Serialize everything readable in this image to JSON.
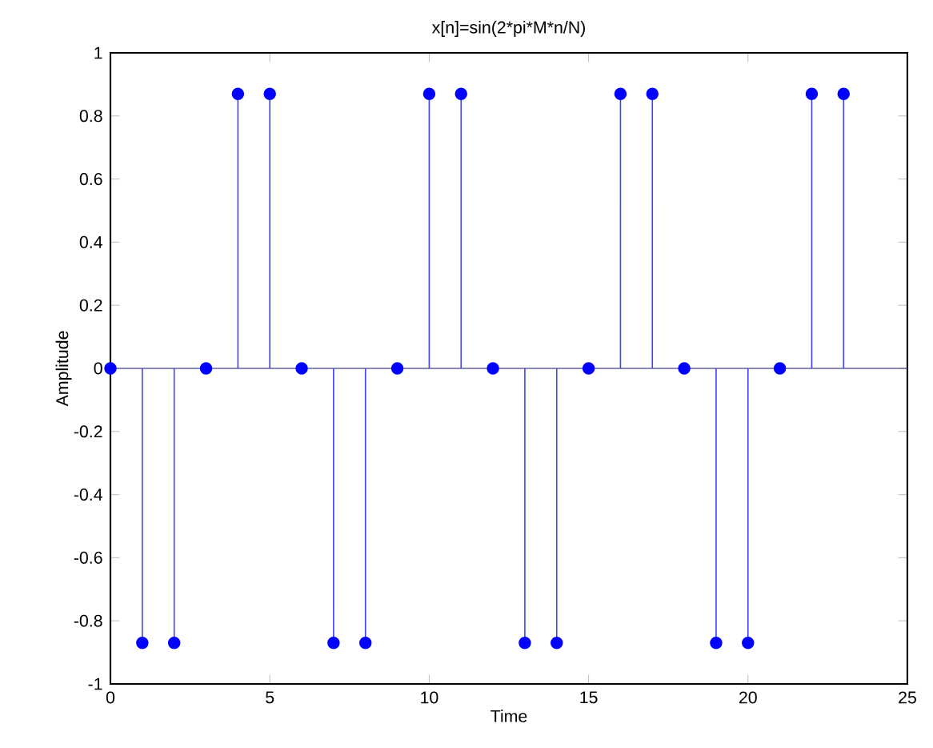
{
  "chart_data": {
    "type": "lollipop",
    "title": "x[n]=sin(2*pi*M*n/N)",
    "xlabel": "Time",
    "ylabel": "Amplitude",
    "x": [
      0,
      1,
      2,
      3,
      4,
      5,
      6,
      7,
      8,
      9,
      10,
      11,
      12,
      13,
      14,
      15,
      16,
      17,
      18,
      19,
      20,
      21,
      22,
      23
    ],
    "values": [
      0,
      -0.87,
      -0.87,
      0,
      0.87,
      0.87,
      0,
      -0.87,
      -0.87,
      0,
      0.87,
      0.87,
      0,
      -0.87,
      -0.87,
      0,
      0.87,
      0.87,
      0,
      -0.87,
      -0.87,
      0,
      0.87,
      0.87
    ],
    "color": "#0000ff",
    "marker": "circle",
    "ref_lines": [
      {
        "axis": "y",
        "value": 0,
        "color": "#6060a0"
      }
    ],
    "xlim": [
      0,
      25
    ],
    "xticks": [
      0,
      5,
      10,
      15,
      20,
      25
    ],
    "ylim": [
      -1,
      1
    ],
    "yticks": [
      -1,
      -0.8,
      -0.6,
      -0.4,
      -0.2,
      0,
      0.2,
      0.4,
      0.6,
      0.8,
      1
    ]
  }
}
